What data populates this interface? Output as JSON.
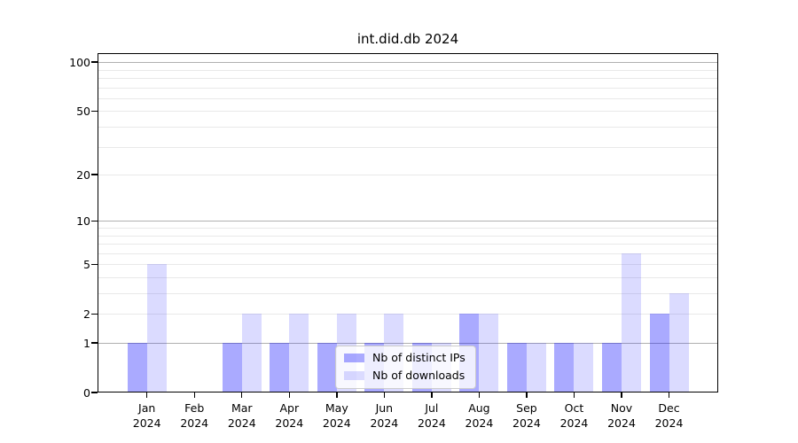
{
  "title": "int.did.db 2024",
  "chart_data": {
    "type": "bar",
    "title": "int.did.db 2024",
    "categories": [
      "Jan",
      "Feb",
      "Mar",
      "Apr",
      "May",
      "Jun",
      "Jul",
      "Aug",
      "Sep",
      "Oct",
      "Nov",
      "Dec"
    ],
    "x_year": "2024",
    "series": [
      {
        "name": "Nb of distinct IPs",
        "color": "#0000ff55",
        "values": [
          1,
          0,
          1,
          1,
          1,
          1,
          1,
          2,
          1,
          1,
          1,
          2
        ]
      },
      {
        "name": "Nb of downloads",
        "color": "#0000ff24",
        "values": [
          5,
          0,
          2,
          2,
          2,
          2,
          1,
          2,
          1,
          1,
          6,
          3
        ]
      }
    ],
    "xlabel": "",
    "ylabel": "",
    "y_scale": "log10(value+1)",
    "ylim": [
      0,
      114
    ],
    "y_ticks": [
      {
        "value": 0,
        "label": "0"
      },
      {
        "value": 1,
        "label": "1"
      },
      {
        "value": 2,
        "label": "2"
      },
      {
        "value": 5,
        "label": "5"
      },
      {
        "value": 10,
        "label": "10"
      },
      {
        "value": 20,
        "label": "20"
      },
      {
        "value": 50,
        "label": "50"
      },
      {
        "value": 100,
        "label": "100"
      }
    ],
    "grid": {
      "major_values": [
        1,
        10,
        100
      ],
      "minor_values": [
        2,
        3,
        4,
        5,
        6,
        7,
        8,
        9,
        20,
        30,
        40,
        50,
        60,
        70,
        80,
        90
      ],
      "major_color": "#b0b0b0",
      "minor_color": "#e9e9e9"
    },
    "legend": {
      "position": "lower center",
      "entries": [
        "Nb of distinct IPs",
        "Nb of downloads"
      ]
    }
  },
  "colors": {
    "background": "#ffffff",
    "axis": "#000000",
    "text": "#000000",
    "ips_bar": "#0000ff55",
    "downloads_bar": "#0000ff24",
    "legend_border": "#cccccc",
    "legend_background": "rgba(255,255,255,0.8)"
  }
}
